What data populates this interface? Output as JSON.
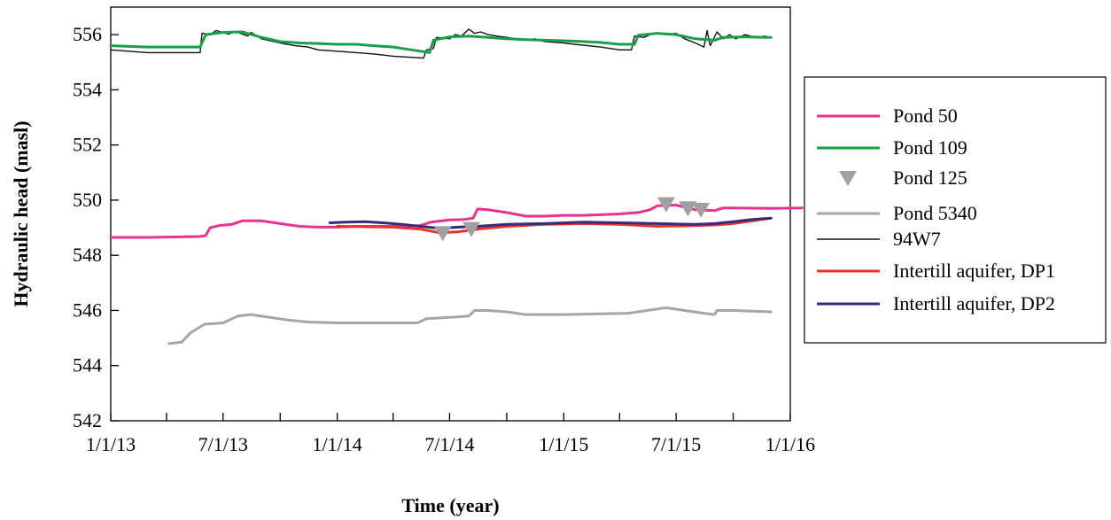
{
  "chart_data": {
    "type": "line",
    "title": "",
    "xlabel": "Time (year)",
    "ylabel": "Hydraulic head (masl)",
    "xlim": [
      "2013-01-01",
      "2016-01-01"
    ],
    "ylim": [
      542,
      557
    ],
    "x_ticks": [
      {
        "date": "2013-01-01",
        "label": "1/1/13"
      },
      {
        "date": "2013-04-01",
        "label": ""
      },
      {
        "date": "2013-07-01",
        "label": "7/1/13"
      },
      {
        "date": "2013-10-01",
        "label": ""
      },
      {
        "date": "2014-01-01",
        "label": "1/1/14"
      },
      {
        "date": "2014-04-01",
        "label": ""
      },
      {
        "date": "2014-07-01",
        "label": "7/1/14"
      },
      {
        "date": "2014-10-01",
        "label": ""
      },
      {
        "date": "2015-01-01",
        "label": "1/1/15"
      },
      {
        "date": "2015-04-01",
        "label": ""
      },
      {
        "date": "2015-07-01",
        "label": "7/1/15"
      },
      {
        "date": "2015-10-01",
        "label": ""
      },
      {
        "date": "2016-01-01",
        "label": "1/1/16"
      }
    ],
    "y_ticks": [
      {
        "value": 542,
        "label": "542"
      },
      {
        "value": 544,
        "label": "544"
      },
      {
        "value": 546,
        "label": "546"
      },
      {
        "value": 548,
        "label": "548"
      },
      {
        "value": 550,
        "label": "550"
      },
      {
        "value": 552,
        "label": "552"
      },
      {
        "value": 554,
        "label": "554"
      },
      {
        "value": 556,
        "label": "556"
      }
    ],
    "grid": false,
    "legend_position": "right",
    "series": [
      {
        "name": "Pond 50",
        "style": "line",
        "color": "#e8338e",
        "width": 3,
        "points": [
          [
            "2013-01-01",
            548.65
          ],
          [
            "2013-03-01",
            548.65
          ],
          [
            "2013-05-25",
            548.68
          ],
          [
            "2013-06-03",
            548.72
          ],
          [
            "2013-06-10",
            549.0
          ],
          [
            "2013-06-25",
            549.08
          ],
          [
            "2013-07-15",
            549.12
          ],
          [
            "2013-08-01",
            549.25
          ],
          [
            "2013-09-01",
            549.25
          ],
          [
            "2013-10-01",
            549.15
          ],
          [
            "2013-11-01",
            549.05
          ],
          [
            "2013-12-01",
            549.02
          ],
          [
            "2014-01-01",
            549.02
          ],
          [
            "2014-02-01",
            549.05
          ],
          [
            "2014-03-01",
            549.05
          ],
          [
            "2014-04-01",
            549.05
          ],
          [
            "2014-05-15",
            549.08
          ],
          [
            "2014-06-01",
            549.2
          ],
          [
            "2014-07-01",
            549.28
          ],
          [
            "2014-07-25",
            549.3
          ],
          [
            "2014-08-08",
            549.35
          ],
          [
            "2014-08-15",
            549.68
          ],
          [
            "2014-09-01",
            549.65
          ],
          [
            "2014-10-01",
            549.55
          ],
          [
            "2014-11-01",
            549.42
          ],
          [
            "2014-12-01",
            549.42
          ],
          [
            "2015-01-01",
            549.45
          ],
          [
            "2015-02-01",
            549.45
          ],
          [
            "2015-03-01",
            549.47
          ],
          [
            "2015-04-01",
            549.5
          ],
          [
            "2015-05-01",
            549.55
          ],
          [
            "2015-05-20",
            549.65
          ],
          [
            "2015-06-01",
            549.8
          ],
          [
            "2015-07-01",
            549.82
          ],
          [
            "2015-08-01",
            549.65
          ],
          [
            "2015-09-01",
            549.62
          ],
          [
            "2015-09-15",
            549.72
          ],
          [
            "2015-10-01",
            549.72
          ],
          [
            "2015-12-01",
            549.7
          ],
          [
            "2016-01-20",
            549.72
          ]
        ]
      },
      {
        "name": "Pond 109",
        "style": "line",
        "color": "#1a9e4a",
        "width": 3,
        "points": [
          [
            "2013-01-01",
            555.6
          ],
          [
            "2013-03-01",
            555.55
          ],
          [
            "2013-05-25",
            555.55
          ],
          [
            "2013-06-03",
            556.0
          ],
          [
            "2013-07-01",
            556.08
          ],
          [
            "2013-08-01",
            556.1
          ],
          [
            "2013-09-01",
            555.9
          ],
          [
            "2013-10-01",
            555.75
          ],
          [
            "2013-11-01",
            555.7
          ],
          [
            "2013-12-01",
            555.68
          ],
          [
            "2014-01-01",
            555.65
          ],
          [
            "2014-02-01",
            555.65
          ],
          [
            "2014-03-01",
            555.6
          ],
          [
            "2014-04-01",
            555.55
          ],
          [
            "2014-05-01",
            555.45
          ],
          [
            "2014-05-30",
            555.35
          ],
          [
            "2014-06-05",
            555.8
          ],
          [
            "2014-07-01",
            555.92
          ],
          [
            "2014-08-01",
            555.95
          ],
          [
            "2014-09-01",
            555.9
          ],
          [
            "2014-10-01",
            555.85
          ],
          [
            "2014-11-01",
            555.82
          ],
          [
            "2014-12-01",
            555.8
          ],
          [
            "2015-01-01",
            555.78
          ],
          [
            "2015-02-01",
            555.75
          ],
          [
            "2015-03-01",
            555.72
          ],
          [
            "2015-04-01",
            555.65
          ],
          [
            "2015-04-25",
            555.65
          ],
          [
            "2015-05-01",
            555.98
          ],
          [
            "2015-06-01",
            556.05
          ],
          [
            "2015-07-01",
            556.0
          ],
          [
            "2015-08-01",
            555.85
          ],
          [
            "2015-09-01",
            555.8
          ],
          [
            "2015-09-15",
            555.9
          ],
          [
            "2015-10-15",
            555.92
          ],
          [
            "2015-12-01",
            555.9
          ]
        ]
      },
      {
        "name": "Pond 125",
        "style": "marker",
        "marker": "triangle-down",
        "color": "#a0a0a0",
        "points": [
          [
            "2014-06-20",
            548.8
          ],
          [
            "2014-08-05",
            548.95
          ],
          [
            "2015-06-15",
            549.85
          ],
          [
            "2015-07-20",
            549.7
          ],
          [
            "2015-08-10",
            549.65
          ]
        ]
      },
      {
        "name": "Pond 5340",
        "style": "line",
        "color": "#a6a6a6",
        "width": 3,
        "points": [
          [
            "2013-04-05",
            544.8
          ],
          [
            "2013-04-25",
            544.85
          ],
          [
            "2013-05-10",
            545.2
          ],
          [
            "2013-06-01",
            545.5
          ],
          [
            "2013-07-01",
            545.55
          ],
          [
            "2013-07-25",
            545.8
          ],
          [
            "2013-08-15",
            545.85
          ],
          [
            "2013-09-15",
            545.75
          ],
          [
            "2013-10-15",
            545.65
          ],
          [
            "2013-11-15",
            545.58
          ],
          [
            "2014-01-01",
            545.55
          ],
          [
            "2014-03-01",
            545.55
          ],
          [
            "2014-04-01",
            545.55
          ],
          [
            "2014-05-10",
            545.55
          ],
          [
            "2014-05-25",
            545.7
          ],
          [
            "2014-07-01",
            545.75
          ],
          [
            "2014-08-01",
            545.8
          ],
          [
            "2014-08-10",
            546.0
          ],
          [
            "2014-09-01",
            546.0
          ],
          [
            "2014-10-01",
            545.95
          ],
          [
            "2014-11-01",
            545.85
          ],
          [
            "2015-01-01",
            545.85
          ],
          [
            "2015-03-01",
            545.88
          ],
          [
            "2015-04-15",
            545.9
          ],
          [
            "2015-05-15",
            546.0
          ],
          [
            "2015-06-15",
            546.1
          ],
          [
            "2015-07-15",
            546.0
          ],
          [
            "2015-08-15",
            545.9
          ],
          [
            "2015-09-01",
            545.85
          ],
          [
            "2015-09-05",
            546.0
          ],
          [
            "2015-10-01",
            546.0
          ],
          [
            "2015-12-01",
            545.95
          ]
        ]
      },
      {
        "name": "94W7",
        "style": "line",
        "color": "#111111",
        "width": 1.4,
        "points": [
          [
            "2013-01-01",
            555.45
          ],
          [
            "2013-03-01",
            555.35
          ],
          [
            "2013-05-25",
            555.35
          ],
          [
            "2013-05-28",
            556.05
          ],
          [
            "2013-06-10",
            556.0
          ],
          [
            "2013-06-20",
            556.15
          ],
          [
            "2013-07-10",
            556.02
          ],
          [
            "2013-07-20",
            556.12
          ],
          [
            "2013-08-10",
            555.95
          ],
          [
            "2013-08-15",
            556.08
          ],
          [
            "2013-09-01",
            555.85
          ],
          [
            "2013-10-01",
            555.7
          ],
          [
            "2013-10-25",
            555.6
          ],
          [
            "2013-11-15",
            555.55
          ],
          [
            "2013-12-01",
            555.45
          ],
          [
            "2014-01-01",
            555.4
          ],
          [
            "2014-02-01",
            555.35
          ],
          [
            "2014-03-01",
            555.3
          ],
          [
            "2014-04-01",
            555.22
          ],
          [
            "2014-05-20",
            555.15
          ],
          [
            "2014-05-25",
            555.45
          ],
          [
            "2014-06-05",
            555.5
          ],
          [
            "2014-06-10",
            555.9
          ],
          [
            "2014-07-01",
            555.85
          ],
          [
            "2014-07-10",
            556.0
          ],
          [
            "2014-07-20",
            555.95
          ],
          [
            "2014-08-01",
            556.2
          ],
          [
            "2014-08-10",
            556.05
          ],
          [
            "2014-08-20",
            556.1
          ],
          [
            "2014-09-01",
            556.0
          ],
          [
            "2014-09-15",
            555.95
          ],
          [
            "2014-10-01",
            555.9
          ],
          [
            "2014-11-01",
            555.8
          ],
          [
            "2014-11-15",
            555.85
          ],
          [
            "2014-12-01",
            555.75
          ],
          [
            "2015-01-01",
            555.7
          ],
          [
            "2015-02-01",
            555.62
          ],
          [
            "2015-03-01",
            555.55
          ],
          [
            "2015-04-01",
            555.45
          ],
          [
            "2015-04-20",
            555.45
          ],
          [
            "2015-04-25",
            555.95
          ],
          [
            "2015-05-10",
            555.9
          ],
          [
            "2015-05-25",
            556.05
          ],
          [
            "2015-06-15",
            556.0
          ],
          [
            "2015-07-01",
            556.05
          ],
          [
            "2015-07-15",
            555.85
          ],
          [
            "2015-08-01",
            555.7
          ],
          [
            "2015-08-15",
            555.55
          ],
          [
            "2015-08-20",
            556.15
          ],
          [
            "2015-08-25",
            555.6
          ],
          [
            "2015-09-05",
            556.1
          ],
          [
            "2015-09-15",
            555.85
          ],
          [
            "2015-09-25",
            556.0
          ],
          [
            "2015-10-05",
            555.85
          ],
          [
            "2015-10-20",
            556.0
          ],
          [
            "2015-11-10",
            555.88
          ],
          [
            "2015-11-20",
            555.95
          ],
          [
            "2015-12-01",
            555.9
          ]
        ]
      },
      {
        "name": "Intertill aquifer, DP1",
        "style": "line",
        "color": "#e8322a",
        "width": 3,
        "points": [
          [
            "2014-01-01",
            549.05
          ],
          [
            "2014-04-01",
            549.02
          ],
          [
            "2014-05-15",
            548.95
          ],
          [
            "2014-06-15",
            548.82
          ],
          [
            "2014-07-15",
            548.85
          ],
          [
            "2014-08-15",
            548.95
          ],
          [
            "2014-10-01",
            549.05
          ],
          [
            "2014-12-01",
            549.12
          ],
          [
            "2015-02-01",
            549.15
          ],
          [
            "2015-04-01",
            549.12
          ],
          [
            "2015-06-01",
            549.05
          ],
          [
            "2015-08-01",
            549.08
          ],
          [
            "2015-09-01",
            549.1
          ],
          [
            "2015-10-01",
            549.15
          ],
          [
            "2015-11-01",
            549.25
          ],
          [
            "2015-12-01",
            549.35
          ]
        ]
      },
      {
        "name": "Intertill aquifer, DP2",
        "style": "line",
        "color": "#3a2878",
        "width": 3,
        "points": [
          [
            "2013-12-20",
            549.18
          ],
          [
            "2014-01-15",
            549.2
          ],
          [
            "2014-02-15",
            549.22
          ],
          [
            "2014-03-15",
            549.18
          ],
          [
            "2014-04-15",
            549.12
          ],
          [
            "2014-05-15",
            549.05
          ],
          [
            "2014-06-15",
            548.98
          ],
          [
            "2014-07-15",
            549.02
          ],
          [
            "2014-08-15",
            549.05
          ],
          [
            "2014-10-01",
            549.12
          ],
          [
            "2014-12-01",
            549.15
          ],
          [
            "2015-02-01",
            549.2
          ],
          [
            "2015-04-01",
            549.18
          ],
          [
            "2015-06-01",
            549.15
          ],
          [
            "2015-08-01",
            549.12
          ],
          [
            "2015-09-01",
            549.15
          ],
          [
            "2015-10-01",
            549.22
          ],
          [
            "2015-11-01",
            549.3
          ],
          [
            "2015-12-01",
            549.35
          ]
        ]
      }
    ]
  }
}
